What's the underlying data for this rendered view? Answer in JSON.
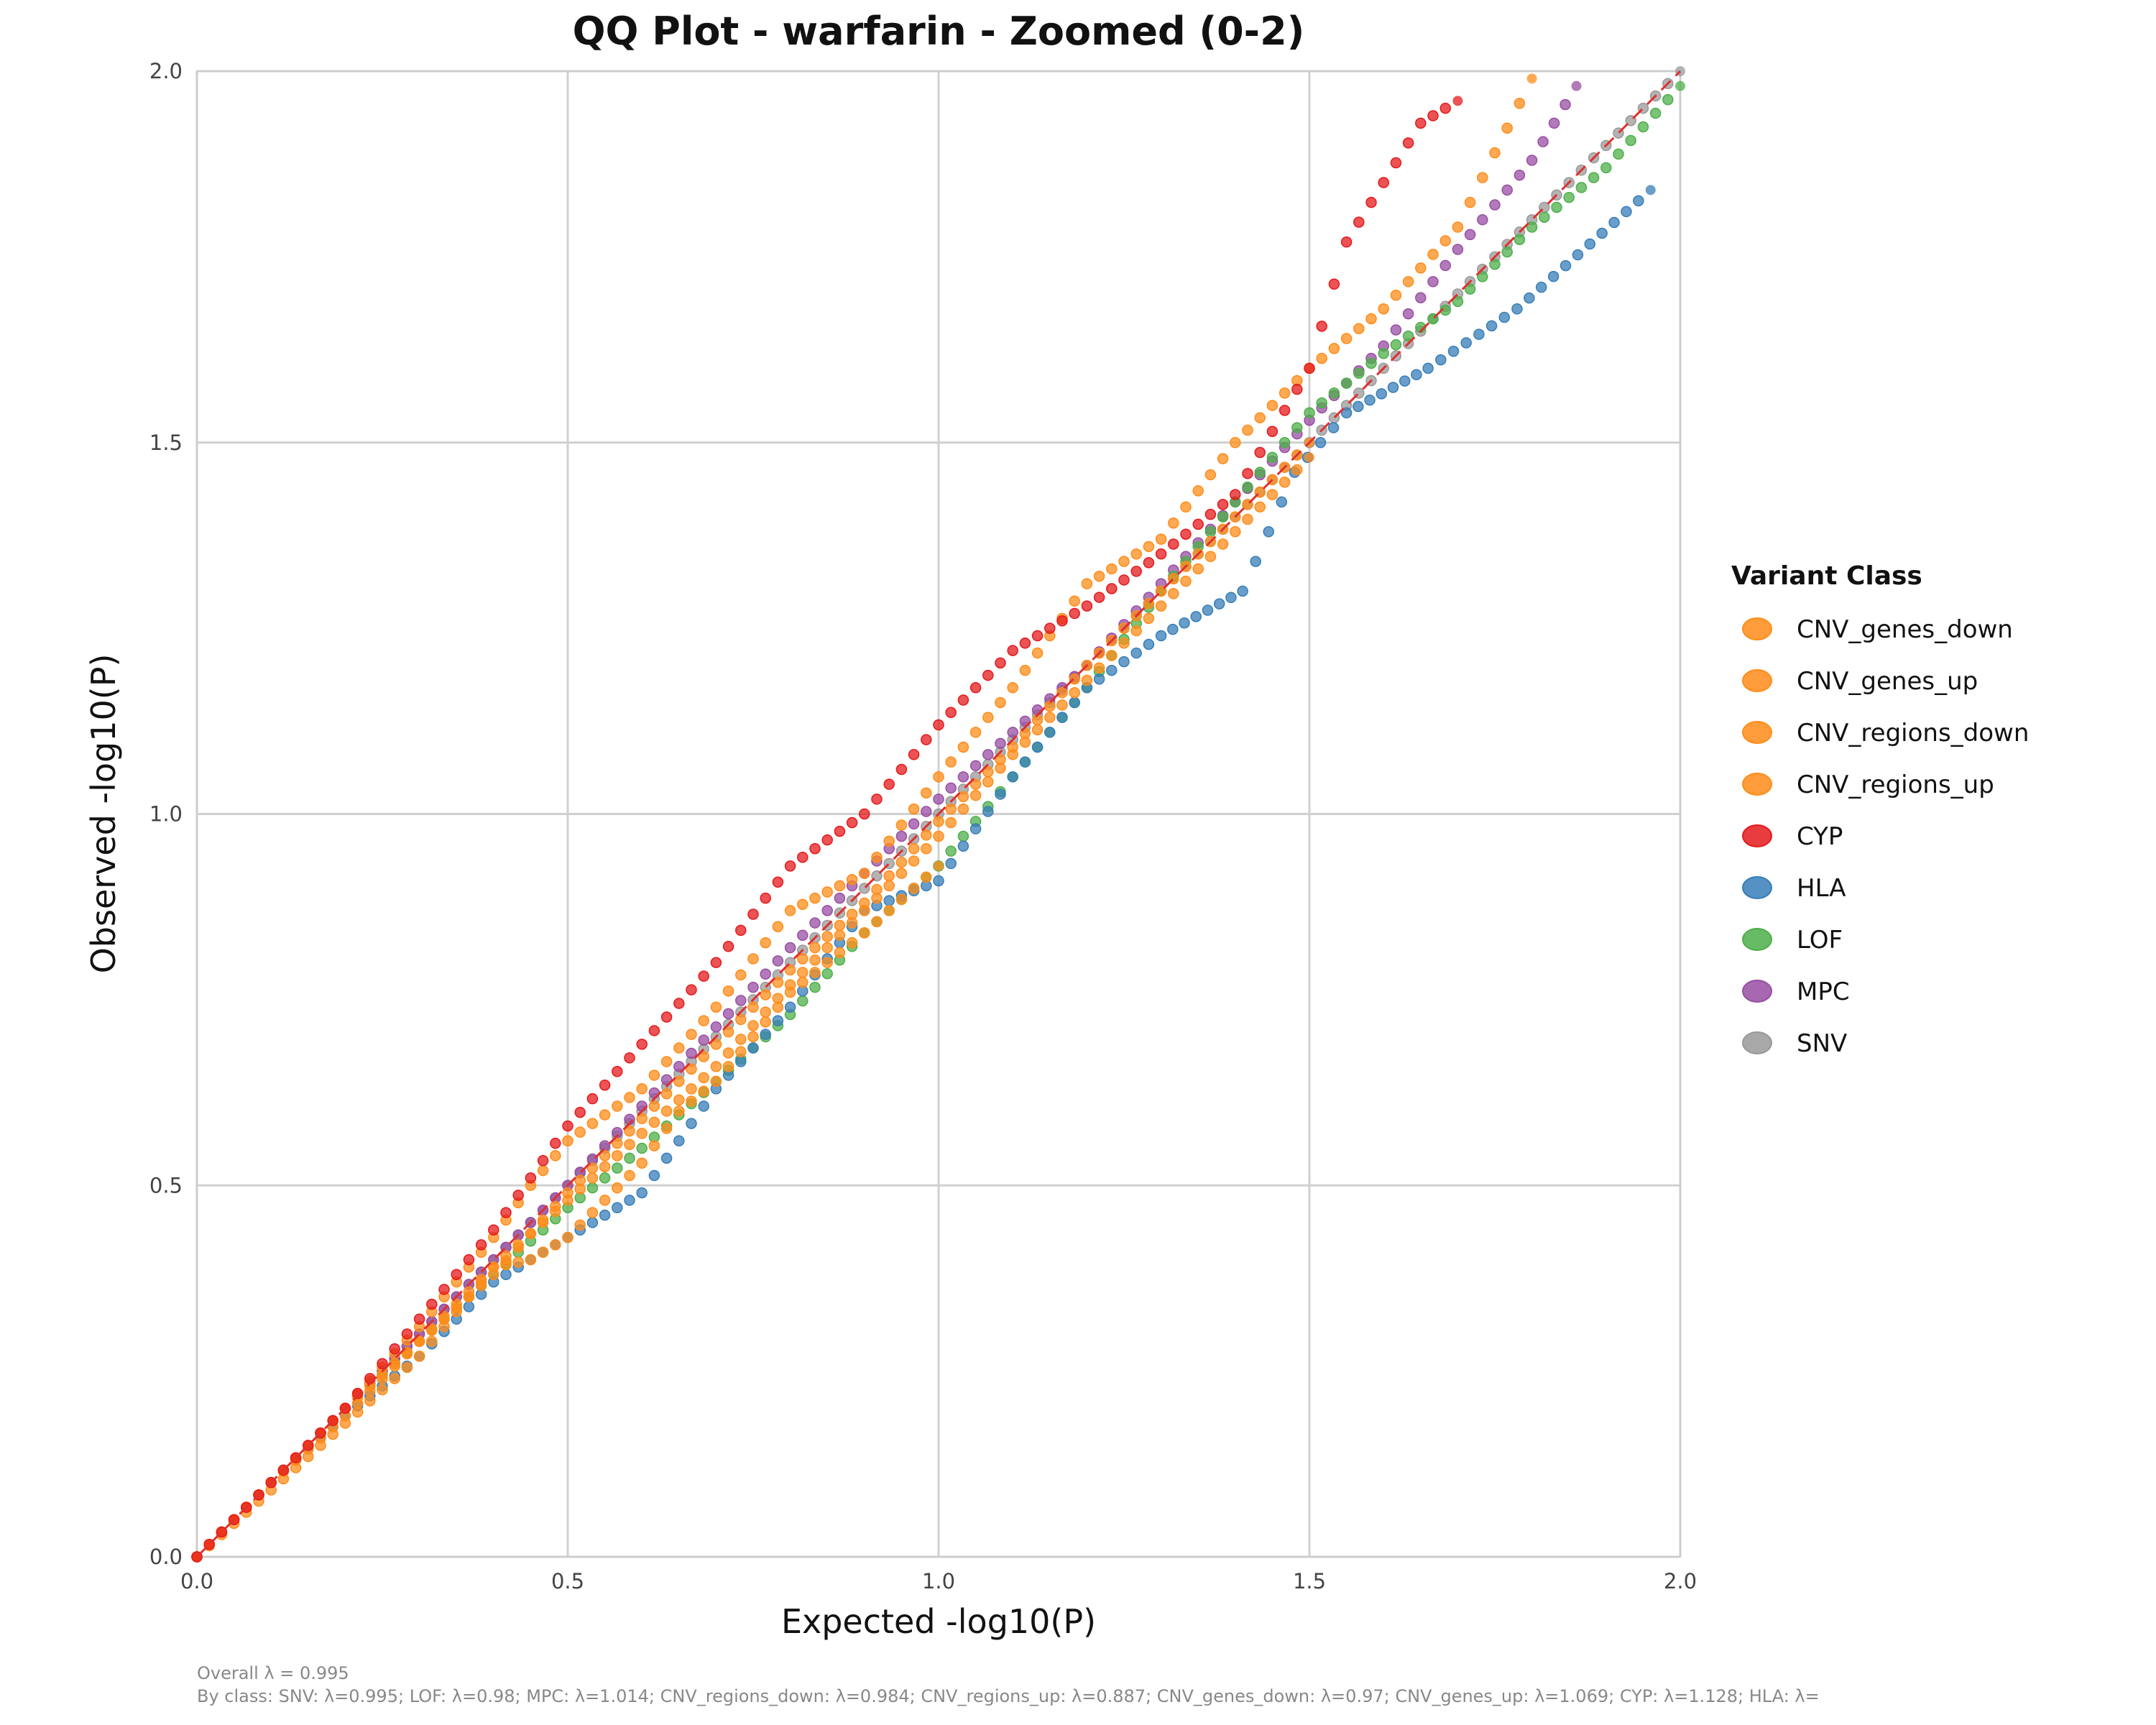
{
  "chart_data": {
    "type": "scatter",
    "title": "QQ Plot - warfarin - Zoomed (0-2)",
    "xlabel": "Expected -log10(P)",
    "ylabel": "Observed -log10(P)",
    "xlim": [
      0,
      2
    ],
    "ylim": [
      0,
      2
    ],
    "xticks": [
      "0.0",
      "0.5",
      "1.0",
      "1.5",
      "2.0"
    ],
    "yticks": [
      "0.0",
      "0.5",
      "1.0",
      "1.5",
      "2.0"
    ],
    "grid": true,
    "reference_line": {
      "type": "y=x",
      "color": "#e03030",
      "style": "dashed"
    },
    "legend": {
      "title": "Variant Class",
      "placement": "right"
    },
    "series": [
      {
        "name": "CNV_genes_down",
        "color": "#ff8c1a",
        "points": [
          [
            0,
            0
          ],
          [
            0.1,
            0.1
          ],
          [
            0.2,
            0.19
          ],
          [
            0.3,
            0.29
          ],
          [
            0.4,
            0.39
          ],
          [
            0.5,
            0.48
          ],
          [
            0.6,
            0.57
          ],
          [
            0.7,
            0.66
          ],
          [
            0.8,
            0.77
          ],
          [
            0.9,
            0.87
          ],
          [
            1.0,
            0.97
          ],
          [
            1.1,
            1.08
          ],
          [
            1.2,
            1.18
          ],
          [
            1.3,
            1.28
          ],
          [
            1.4,
            1.38
          ],
          [
            1.5,
            1.48
          ]
        ]
      },
      {
        "name": "CNV_genes_up",
        "color": "#ff8c1a",
        "points": [
          [
            0,
            0
          ],
          [
            0.1,
            0.1
          ],
          [
            0.2,
            0.2
          ],
          [
            0.3,
            0.31
          ],
          [
            0.4,
            0.43
          ],
          [
            0.45,
            0.5
          ],
          [
            0.5,
            0.56
          ],
          [
            0.6,
            0.63
          ],
          [
            0.7,
            0.74
          ],
          [
            0.8,
            0.87
          ],
          [
            0.9,
            0.92
          ],
          [
            1.0,
            1.05
          ],
          [
            1.1,
            1.17
          ],
          [
            1.2,
            1.31
          ],
          [
            1.3,
            1.37
          ],
          [
            1.4,
            1.5
          ],
          [
            1.5,
            1.6
          ],
          [
            1.6,
            1.68
          ],
          [
            1.7,
            1.79
          ],
          [
            1.8,
            1.99
          ]
        ]
      },
      {
        "name": "CNV_regions_down",
        "color": "#ff8c1a",
        "points": [
          [
            0,
            0
          ],
          [
            0.1,
            0.1
          ],
          [
            0.2,
            0.2
          ],
          [
            0.3,
            0.29
          ],
          [
            0.4,
            0.38
          ],
          [
            0.5,
            0.49
          ],
          [
            0.6,
            0.59
          ],
          [
            0.7,
            0.69
          ],
          [
            0.8,
            0.79
          ],
          [
            0.9,
            0.88
          ],
          [
            1.0,
            0.99
          ],
          [
            1.1,
            1.09
          ],
          [
            1.2,
            1.2
          ],
          [
            1.3,
            1.3
          ],
          [
            1.4,
            1.4
          ],
          [
            1.5,
            1.5
          ]
        ]
      },
      {
        "name": "CNV_regions_up",
        "color": "#ff8c1a",
        "points": [
          [
            0,
            0
          ],
          [
            0.1,
            0.09
          ],
          [
            0.2,
            0.18
          ],
          [
            0.3,
            0.27
          ],
          [
            0.4,
            0.39
          ],
          [
            0.45,
            0.4
          ],
          [
            0.5,
            0.43
          ],
          [
            0.55,
            0.48
          ],
          [
            0.6,
            0.53
          ],
          [
            0.65,
            0.6
          ],
          [
            0.7,
            0.64
          ],
          [
            0.8,
            0.76
          ],
          [
            0.9,
            0.84
          ],
          [
            1.0,
            0.93
          ]
        ]
      },
      {
        "name": "CYP",
        "color": "#e41a1c",
        "points": [
          [
            0,
            0
          ],
          [
            0.1,
            0.1
          ],
          [
            0.2,
            0.2
          ],
          [
            0.3,
            0.32
          ],
          [
            0.4,
            0.44
          ],
          [
            0.5,
            0.58
          ],
          [
            0.6,
            0.69
          ],
          [
            0.7,
            0.8
          ],
          [
            0.8,
            0.93
          ],
          [
            0.9,
            1.0
          ],
          [
            1.0,
            1.12
          ],
          [
            1.1,
            1.22
          ],
          [
            1.2,
            1.28
          ],
          [
            1.3,
            1.35
          ],
          [
            1.4,
            1.43
          ],
          [
            1.5,
            1.6
          ],
          [
            1.55,
            1.77
          ],
          [
            1.6,
            1.85
          ],
          [
            1.65,
            1.93
          ],
          [
            1.7,
            1.96
          ]
        ]
      },
      {
        "name": "HLA",
        "color": "#377eb8",
        "points": [
          [
            0,
            0
          ],
          [
            0.1,
            0.1
          ],
          [
            0.2,
            0.19
          ],
          [
            0.3,
            0.27
          ],
          [
            0.4,
            0.37
          ],
          [
            0.5,
            0.43
          ],
          [
            0.6,
            0.49
          ],
          [
            0.7,
            0.63
          ],
          [
            0.8,
            0.74
          ],
          [
            0.9,
            0.87
          ],
          [
            1.0,
            0.91
          ],
          [
            1.1,
            1.05
          ],
          [
            1.2,
            1.17
          ],
          [
            1.3,
            1.24
          ],
          [
            1.41,
            1.3
          ],
          [
            1.48,
            1.46
          ],
          [
            1.55,
            1.54
          ],
          [
            1.66,
            1.6
          ],
          [
            1.78,
            1.68
          ],
          [
            1.96,
            1.84
          ]
        ]
      },
      {
        "name": "LOF",
        "color": "#4daf4a",
        "points": [
          [
            0,
            0
          ],
          [
            0.2,
            0.2
          ],
          [
            0.4,
            0.38
          ],
          [
            0.5,
            0.47
          ],
          [
            0.6,
            0.55
          ],
          [
            0.7,
            0.64
          ],
          [
            0.8,
            0.73
          ],
          [
            0.9,
            0.84
          ],
          [
            1.0,
            0.93
          ],
          [
            1.1,
            1.05
          ],
          [
            1.2,
            1.17
          ],
          [
            1.3,
            1.3
          ],
          [
            1.4,
            1.42
          ],
          [
            1.5,
            1.54
          ],
          [
            1.6,
            1.62
          ],
          [
            1.7,
            1.69
          ],
          [
            1.8,
            1.79
          ],
          [
            1.9,
            1.87
          ],
          [
            2.0,
            1.98
          ]
        ]
      },
      {
        "name": "MPC",
        "color": "#984ea3",
        "points": [
          [
            0,
            0
          ],
          [
            0.5,
            0.5
          ],
          [
            0.8,
            0.82
          ],
          [
            1.0,
            1.02
          ],
          [
            1.2,
            1.2
          ],
          [
            1.4,
            1.42
          ],
          [
            1.5,
            1.53
          ],
          [
            1.6,
            1.63
          ],
          [
            1.7,
            1.76
          ],
          [
            1.8,
            1.88
          ],
          [
            1.86,
            1.98
          ]
        ]
      },
      {
        "name": "SNV",
        "color": "#999999",
        "points": [
          [
            0,
            0
          ],
          [
            0.5,
            0.5
          ],
          [
            1.0,
            1.0
          ],
          [
            1.5,
            1.5
          ],
          [
            2.0,
            2.0
          ]
        ]
      }
    ]
  },
  "footer": {
    "overall": "Overall λ = 0.995",
    "by_class": "By class: SNV: λ=0.995; LOF: λ=0.98; MPC: λ=1.014; CNV_regions_down: λ=0.984; CNV_regions_up: λ=0.887; CNV_genes_down: λ=0.97; CNV_genes_up: λ=1.069; CYP: λ=1.128; HLA: λ="
  }
}
